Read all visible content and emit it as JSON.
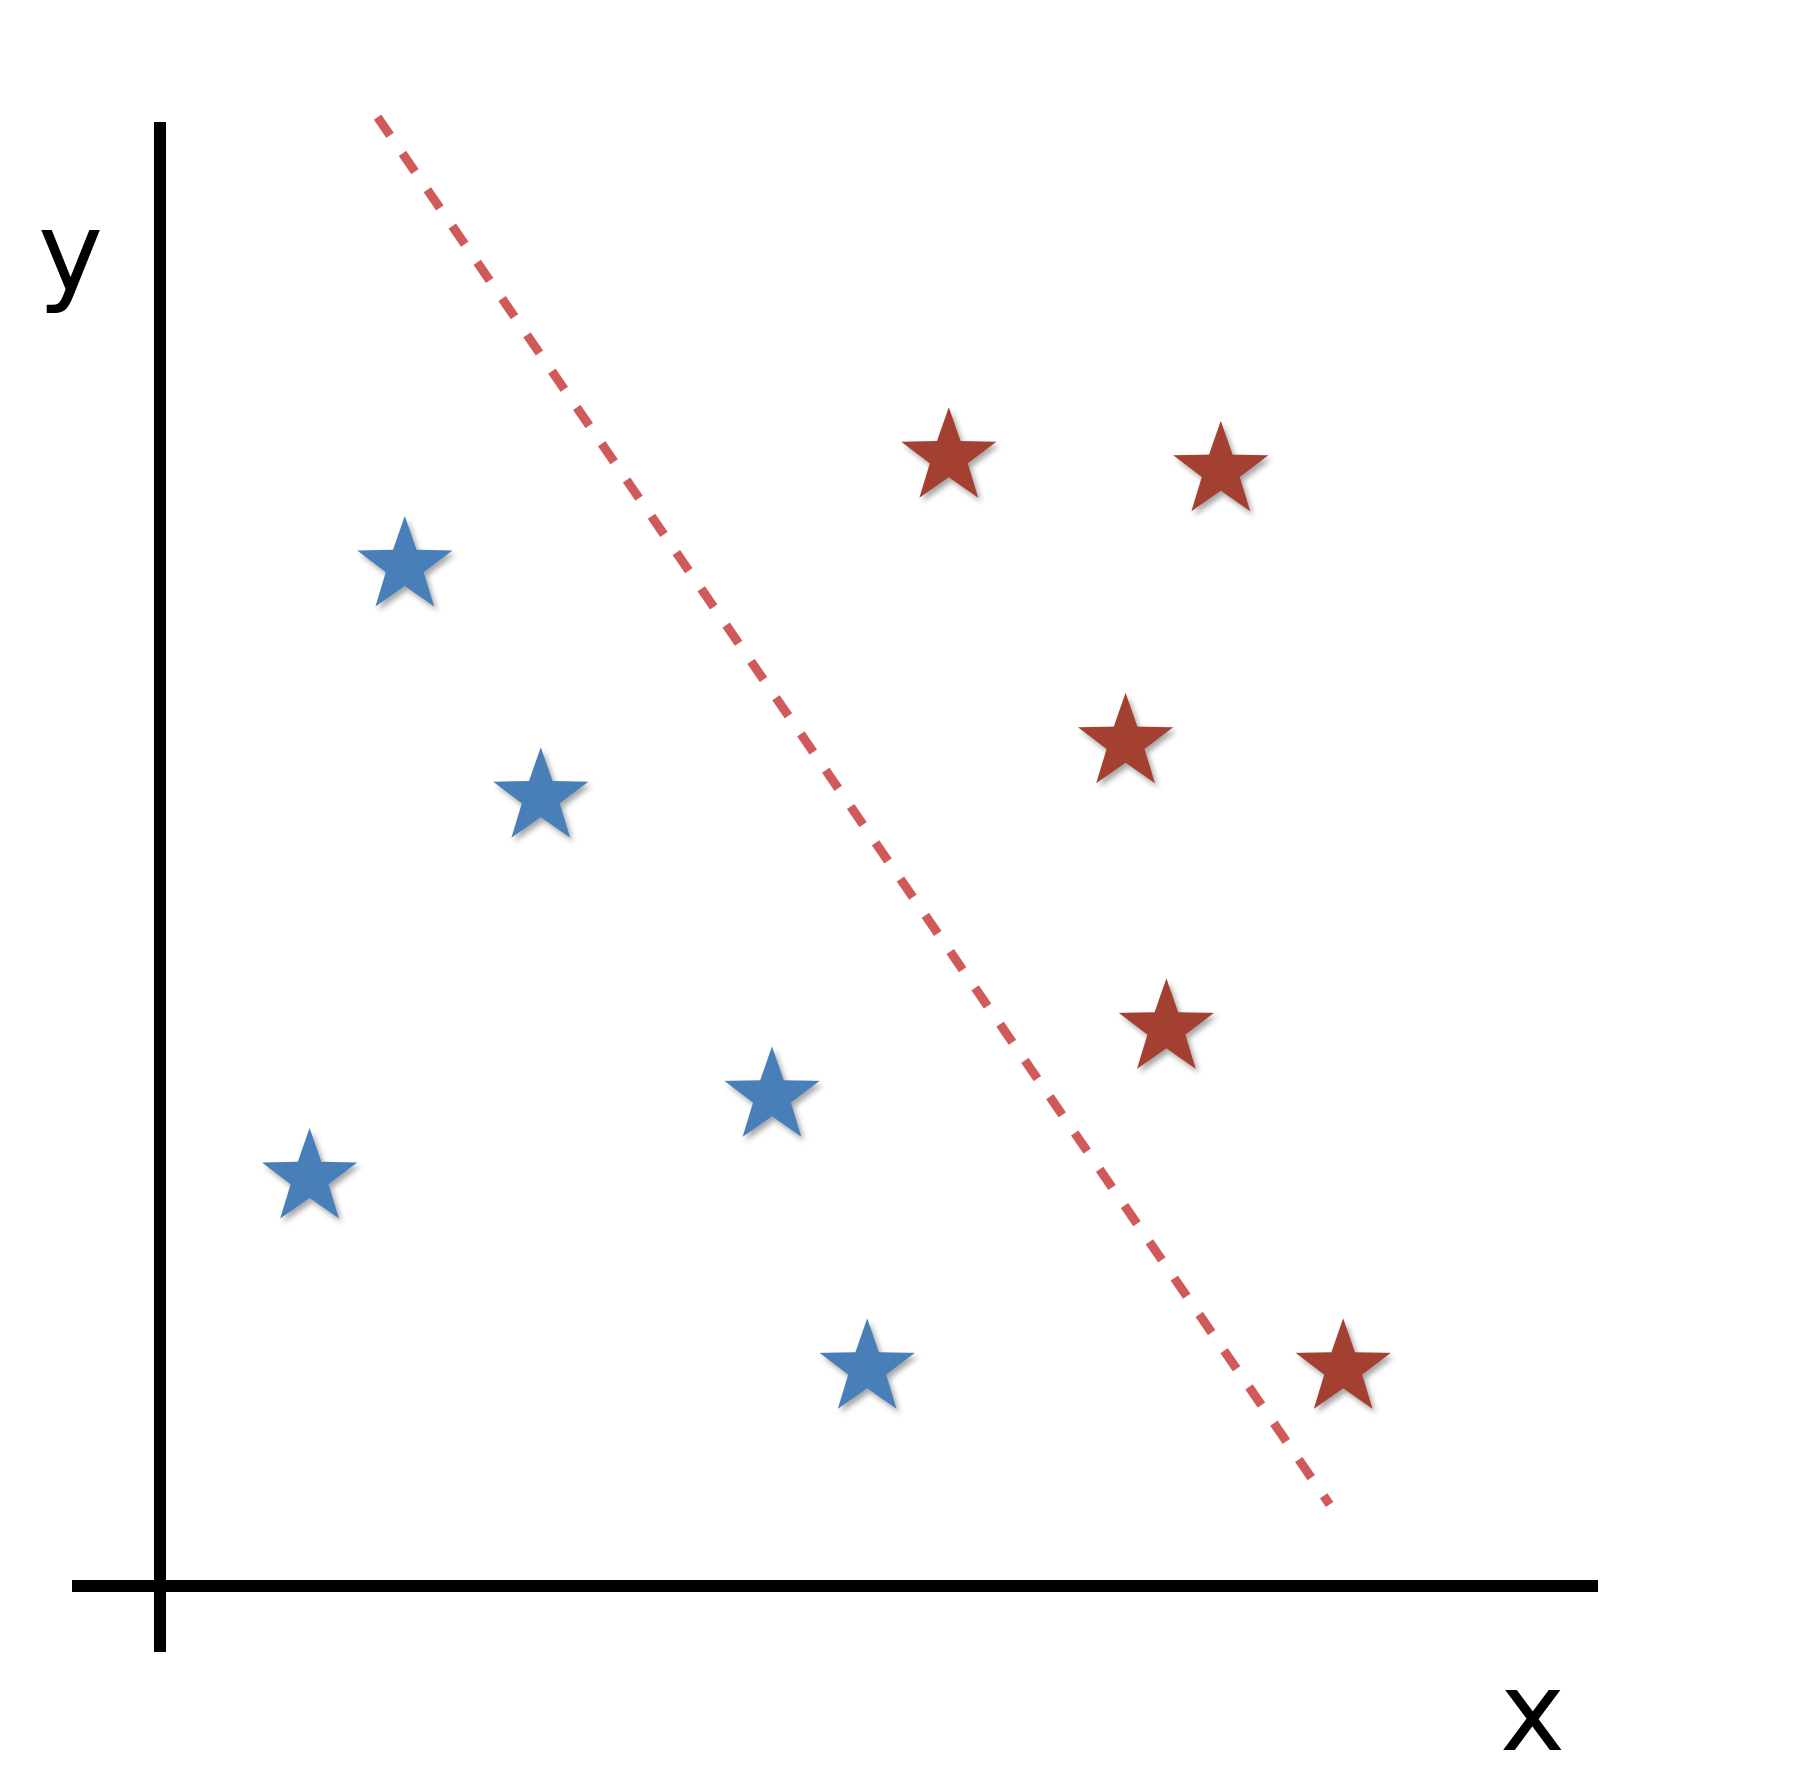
{
  "chart_data": {
    "type": "scatter",
    "title": "",
    "xlabel": "x",
    "ylabel": "y",
    "xlim": [
      0,
      10
    ],
    "ylim": [
      0,
      10
    ],
    "grid": false,
    "legend": "none",
    "marker": "star",
    "series": [
      {
        "color": "#4a7fb8",
        "points": [
          {
            "x": 1.8,
            "y": 7.5
          },
          {
            "x": 2.8,
            "y": 5.8
          },
          {
            "x": 1.1,
            "y": 3.0
          },
          {
            "x": 4.5,
            "y": 3.6
          },
          {
            "x": 5.2,
            "y": 1.6
          }
        ]
      },
      {
        "color": "#a33f32",
        "points": [
          {
            "x": 5.8,
            "y": 8.3
          },
          {
            "x": 7.8,
            "y": 8.2
          },
          {
            "x": 7.1,
            "y": 6.2
          },
          {
            "x": 7.4,
            "y": 4.1
          },
          {
            "x": 8.7,
            "y": 1.6
          }
        ]
      }
    ],
    "decision_boundary": {
      "style": "dashed",
      "color": "#d05a5a",
      "from": {
        "x": 1.6,
        "y": 10.8
      },
      "to": {
        "x": 8.6,
        "y": 0.6
      }
    }
  }
}
